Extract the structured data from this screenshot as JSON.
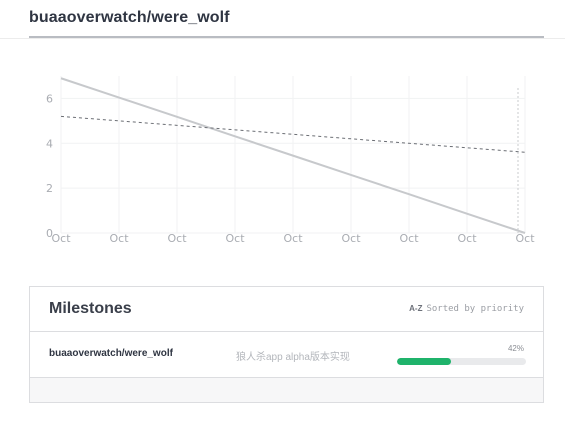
{
  "repo_title": "buaaoverwatch/were_wolf",
  "chart_data": {
    "type": "line",
    "x": [
      "Oct",
      "Oct",
      "Oct",
      "Oct",
      "Oct",
      "Oct",
      "Oct",
      "Oct",
      "Oct"
    ],
    "xlabel": "",
    "ylabel": "",
    "y_ticks": [
      0,
      2,
      4,
      6
    ],
    "ylim": [
      0,
      7
    ],
    "grid": true,
    "series": [
      {
        "values": [
          6.9,
          6.04,
          5.18,
          4.31,
          3.45,
          2.59,
          1.73,
          0.86,
          0.0
        ],
        "style": "solid",
        "color": "#c7c9cc"
      },
      {
        "values": [
          5.2,
          5.0,
          4.8,
          4.6,
          4.4,
          4.2,
          4.0,
          3.8,
          3.6
        ],
        "style": "dashed",
        "color": "#6b6e74"
      }
    ]
  },
  "milestones": {
    "title": "Milestones",
    "sort_icon": "A-Z sort icon",
    "sort_icon_text": "A-Z",
    "sort_label": "Sorted by priority",
    "items": [
      {
        "repo": "buaaoverwatch/were_wolf",
        "description": "狼人杀app alpha版本实现",
        "percent_label": "42%",
        "progress": 0.42
      }
    ]
  },
  "colors": {
    "progress_fill": "#1fb36b",
    "progress_track": "#e9eaec"
  }
}
